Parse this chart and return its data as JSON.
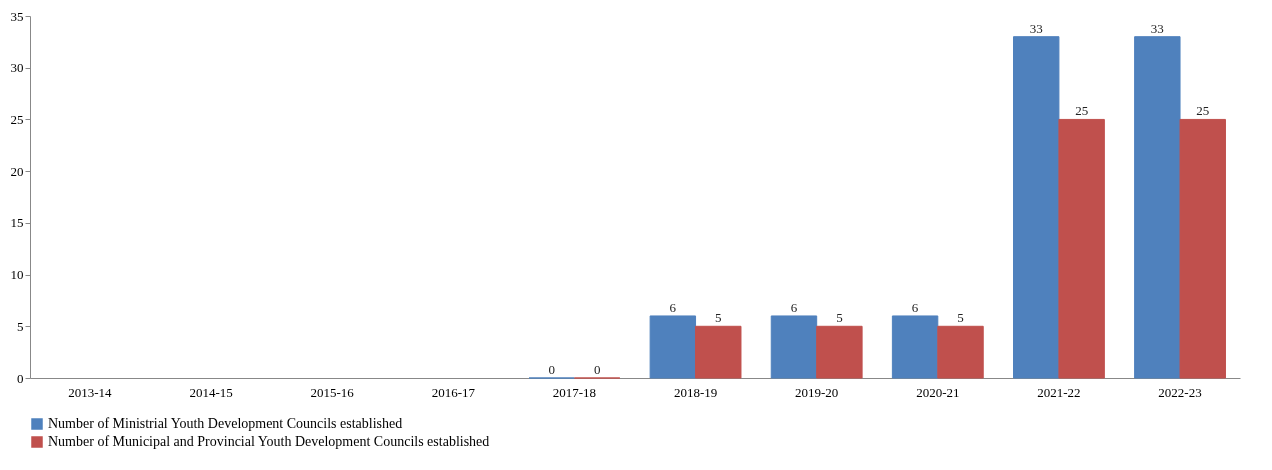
{
  "chart_data": {
    "type": "bar",
    "categories": [
      "2013-14",
      "2014-15",
      "2015-16",
      "2016-17",
      "2017-18",
      "2018-19",
      "2019-20",
      "2020-21",
      "2021-22",
      "2022-23"
    ],
    "series": [
      {
        "name": "Number of Ministrial Youth Development Councils established",
        "color": "#4f81bd",
        "values": [
          null,
          null,
          null,
          null,
          0,
          6,
          6,
          6,
          33,
          33
        ]
      },
      {
        "name": "Number of Municipal and Provincial Youth Development Councils established",
        "color": "#c0504d",
        "values": [
          null,
          null,
          null,
          null,
          0,
          5,
          5,
          5,
          25,
          25
        ]
      }
    ],
    "ylim": [
      0,
      35
    ],
    "yticks": [
      0,
      5,
      10,
      15,
      20,
      25,
      30,
      35
    ],
    "grid": false,
    "legend": "bottom",
    "data_labels": true
  }
}
